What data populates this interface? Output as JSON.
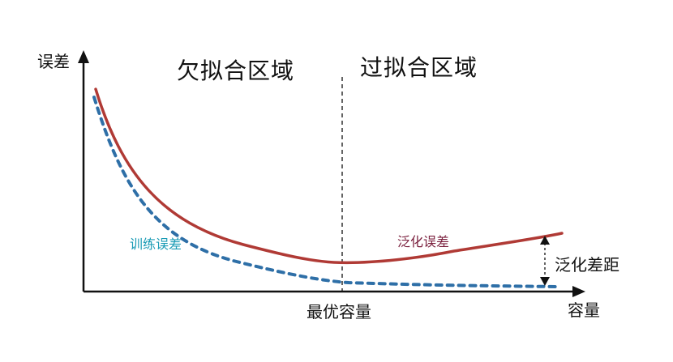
{
  "y_axis_label": "误差",
  "x_axis_label": "容量",
  "regions": {
    "underfit": "欠拟合区域",
    "overfit": "过拟合区域"
  },
  "optimal_capacity_label": "最优容量",
  "curves": {
    "training_error": {
      "label": "训练误差",
      "color": "#2e6fa7",
      "label_color": "#1a9bb5",
      "style": "dashed"
    },
    "generalization_error": {
      "label": "泛化误差",
      "color": "#b03a35",
      "label_color": "#7a1f3d",
      "style": "solid"
    }
  },
  "generalization_gap_label": "泛化差距",
  "axis_color": "#111111"
}
